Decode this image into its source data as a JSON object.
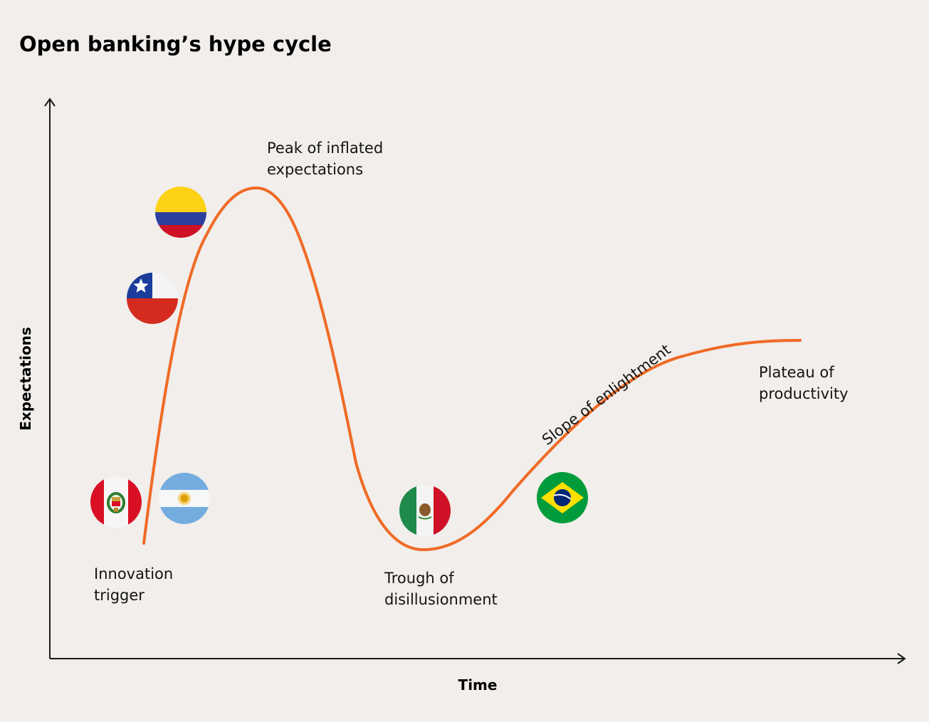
{
  "title": "Open banking’s hype cycle",
  "axes": {
    "x_label": "Time",
    "y_label": "Expectations"
  },
  "curve_color": "#f06a25",
  "phases": {
    "innovation_trigger": [
      "Innovation",
      "trigger"
    ],
    "peak": [
      "Peak of inflated",
      "expectations"
    ],
    "trough": [
      "Trough of",
      "disillusionment"
    ],
    "slope": "Slope of enlightment",
    "plateau": [
      "Plateau of",
      "productivity"
    ]
  },
  "flags": [
    {
      "country": "Colombia",
      "icon": "colombia-flag-icon"
    },
    {
      "country": "Chile",
      "icon": "chile-flag-icon"
    },
    {
      "country": "Peru",
      "icon": "peru-flag-icon"
    },
    {
      "country": "Argentina",
      "icon": "argentina-flag-icon"
    },
    {
      "country": "Mexico",
      "icon": "mexico-flag-icon"
    },
    {
      "country": "Brazil",
      "icon": "brazil-flag-icon"
    }
  ]
}
